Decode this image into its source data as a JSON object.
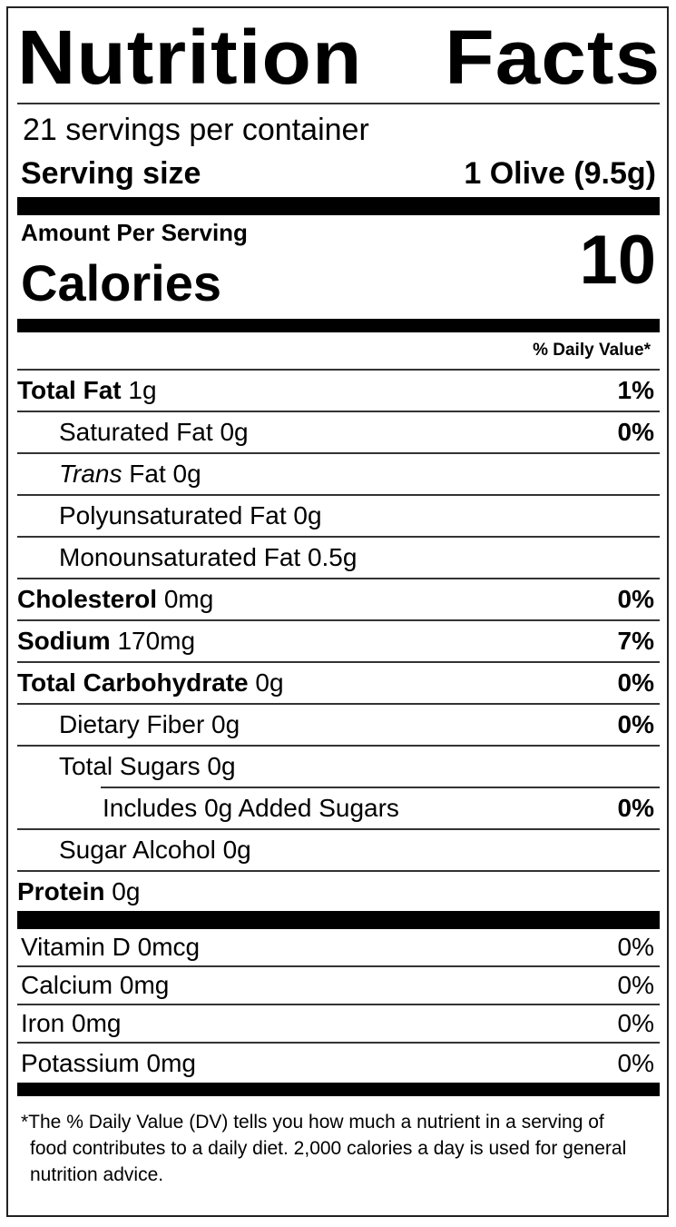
{
  "title": [
    "Nutrition",
    "Facts"
  ],
  "servings_per_container": "21 servings per container",
  "serving_size": {
    "label": "Serving size",
    "value": "1 Olive (9.5g)"
  },
  "amount_per_serving": "Amount Per Serving",
  "calories": {
    "label": "Calories",
    "value": "10"
  },
  "daily_value_header": "% Daily Value*",
  "nutrients": [
    {
      "name": "Total Fat",
      "amount": "1g",
      "dv": "1%"
    },
    {
      "name": "Saturated Fat",
      "amount": "0g",
      "dv": "0%"
    },
    {
      "name": "Trans",
      "suffix": "Fat",
      "amount": "0g",
      "dv": ""
    },
    {
      "name": "Polyunsaturated Fat",
      "amount": "0g",
      "dv": ""
    },
    {
      "name": "Monounsaturated Fat",
      "amount": "0.5g",
      "dv": ""
    },
    {
      "name": "Cholesterol",
      "amount": "0mg",
      "dv": "0%"
    },
    {
      "name": "Sodium",
      "amount": "170mg",
      "dv": "7%"
    },
    {
      "name": "Total Carbohydrate",
      "amount": "0g",
      "dv": "0%"
    },
    {
      "name": "Dietary Fiber",
      "amount": "0g",
      "dv": "0%"
    },
    {
      "name": "Total Sugars",
      "amount": "0g",
      "dv": ""
    },
    {
      "name": "Includes 0g Added Sugars",
      "amount": "",
      "dv": "0%"
    },
    {
      "name": "Sugar Alcohol",
      "amount": "0g",
      "dv": ""
    },
    {
      "name": "Protein",
      "amount": "0g",
      "dv": ""
    }
  ],
  "vitamins": [
    {
      "name": "Vitamin D 0mcg",
      "dv": "0%"
    },
    {
      "name": "Calcium 0mg",
      "dv": "0%"
    },
    {
      "name": "Iron 0mg",
      "dv": "0%"
    },
    {
      "name": "Potassium 0mg",
      "dv": "0%"
    }
  ],
  "footnote": "*The % Daily Value (DV) tells you how much a nutrient in a serving of food contributes to a daily diet. 2,000 calories a day is used for general nutrition advice."
}
